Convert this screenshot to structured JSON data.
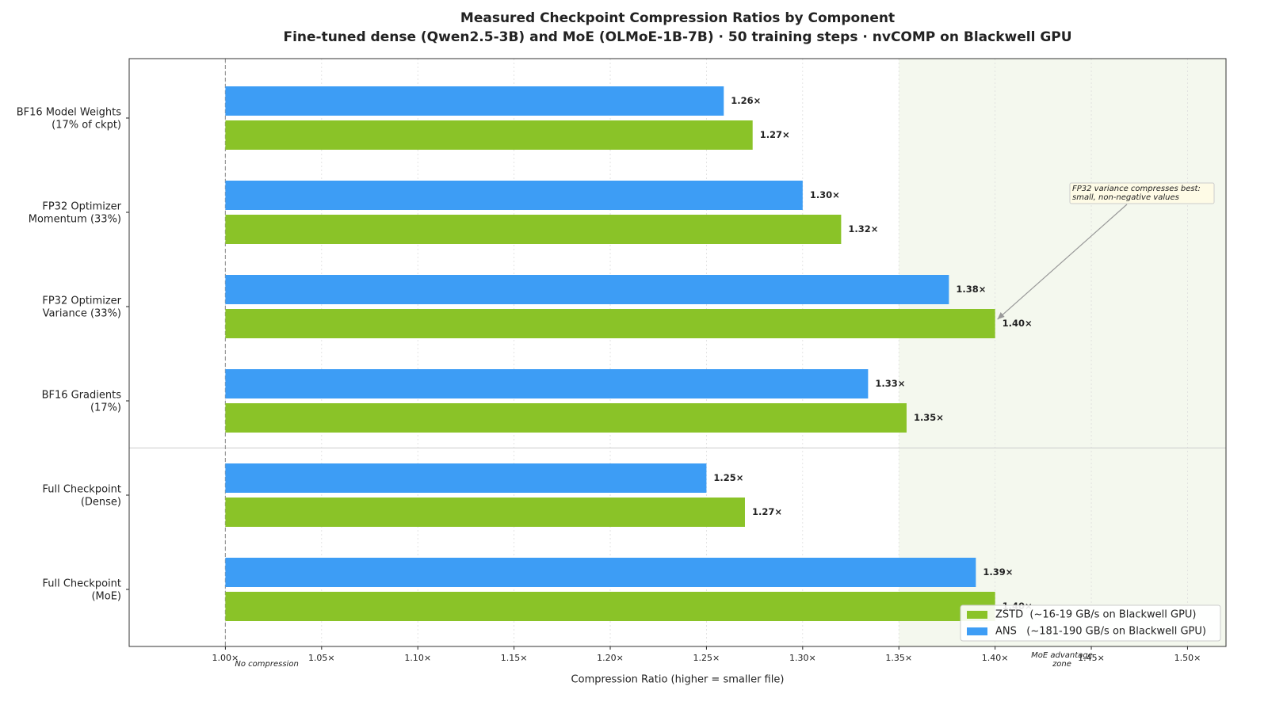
{
  "chart_data": {
    "type": "hbar",
    "title": "Measured Checkpoint Compression Ratios by Component",
    "subtitle": "Fine-tuned dense (Qwen2.5-3B) and MoE (OLMoE-1B-7B) · 50 training steps · nvCOMP on Blackwell GPU",
    "xlabel": "Compression Ratio (higher = smaller file)",
    "categories": [
      [
        "BF16 Model Weights",
        "(17% of ckpt)"
      ],
      [
        "FP32 Optimizer",
        "Momentum (33%)"
      ],
      [
        "FP32 Optimizer",
        "Variance (33%)"
      ],
      [
        "BF16 Gradients",
        "(17%)"
      ],
      [
        "Full Checkpoint",
        "(Dense)"
      ],
      [
        "Full Checkpoint",
        "(MoE)"
      ]
    ],
    "series": [
      {
        "name": "ZSTD  (~16-19 GB/s on Blackwell GPU)",
        "color": "#8ac328",
        "label_color": "#7db51f",
        "values": [
          1.274,
          1.32,
          1.4,
          1.354,
          1.27,
          1.4
        ],
        "value_labels": [
          "1.27×",
          "1.32×",
          "1.40×",
          "1.35×",
          "1.27×",
          "1.40×"
        ]
      },
      {
        "name": "ANS   (~181-190 GB/s on Blackwell GPU)",
        "color": "#3d9df5",
        "label_color": "#2a8ad8",
        "values": [
          1.259,
          1.3,
          1.376,
          1.334,
          1.25,
          1.39
        ],
        "value_labels": [
          "1.26×",
          "1.30×",
          "1.38×",
          "1.33×",
          "1.25×",
          "1.39×"
        ]
      }
    ],
    "xlim": [
      0.95,
      1.52
    ],
    "xticks": [
      {
        "value": 1.0,
        "label": "1.00×"
      },
      {
        "value": 1.05,
        "label": "1.05×"
      },
      {
        "value": 1.1,
        "label": "1.10×"
      },
      {
        "value": 1.15,
        "label": "1.15×"
      },
      {
        "value": 1.2,
        "label": "1.20×"
      },
      {
        "value": 1.25,
        "label": "1.25×"
      },
      {
        "value": 1.3,
        "label": "1.30×"
      },
      {
        "value": 1.35,
        "label": "1.35×"
      },
      {
        "value": 1.4,
        "label": "1.40×"
      },
      {
        "value": 1.45,
        "label": "1.45×"
      },
      {
        "value": 1.5,
        "label": "1.50×"
      }
    ],
    "grid": true,
    "legend": "lower right",
    "reference": {
      "value": 1.0,
      "label": "No compression"
    },
    "highlight": {
      "from": 1.35,
      "label": [
        "MoE advantage",
        "zone"
      ],
      "color": "#f4f8ee"
    },
    "annotation": [
      "FP32 variance compresses best:",
      "small, non-negative values"
    ]
  }
}
